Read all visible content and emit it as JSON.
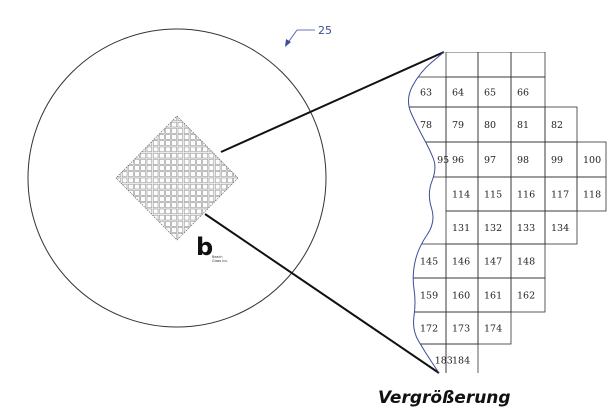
{
  "reference_number": "25",
  "caption": "Vergrößerung",
  "logo": {
    "mark": "b",
    "lines": [
      "Beach",
      "Glass Inc."
    ]
  },
  "enlarged_rows": [
    [
      "63",
      "64",
      "65",
      "66"
    ],
    [
      "78",
      "79",
      "80",
      "81",
      "82"
    ],
    [
      "95",
      "96",
      "97",
      "98",
      "99",
      "100"
    ],
    [
      "114",
      "115",
      "116",
      "117",
      "118"
    ],
    [
      "131",
      "132",
      "133",
      "134"
    ],
    [
      "145",
      "146",
      "147",
      "148"
    ],
    [
      "159",
      "160",
      "161",
      "162"
    ],
    [
      "172",
      "173",
      "174"
    ],
    [
      "183",
      "184"
    ]
  ],
  "colors": {
    "lines": "#333333",
    "leader": "#3a4e9a",
    "cut_edge": "#3a4e9a"
  }
}
